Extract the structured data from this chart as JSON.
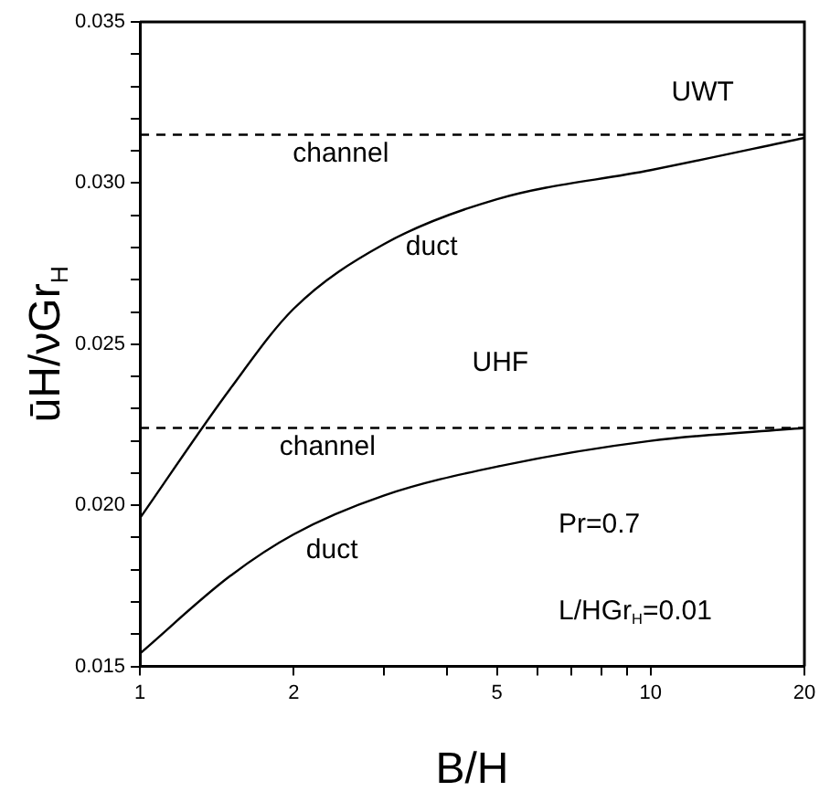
{
  "chart_data": {
    "type": "line",
    "xlabel": "B/H",
    "ylabel": "ūH/νGr$_{H}$",
    "log": "x",
    "xlim": [
      1,
      20
    ],
    "ylim": [
      0.015,
      0.035
    ],
    "xticks": [
      1,
      2,
      {
        "value": 3,
        "label": null
      },
      {
        "value": 4,
        "label": null
      },
      5,
      {
        "value": 6,
        "label": null
      },
      {
        "value": 7,
        "label": null
      },
      {
        "value": 8,
        "label": null
      },
      {
        "value": 9,
        "label": null
      },
      10,
      20
    ],
    "yticks": [
      0.015,
      {
        "value": 0.016,
        "label": null
      },
      {
        "value": 0.017,
        "label": null
      },
      {
        "value": 0.018,
        "label": null
      },
      {
        "value": 0.019,
        "label": null
      },
      "0.020",
      {
        "value": 0.021,
        "label": null
      },
      {
        "value": 0.022,
        "label": null
      },
      {
        "value": 0.023,
        "label": null
      },
      {
        "value": 0.024,
        "label": null
      },
      0.025,
      {
        "value": 0.026,
        "label": null
      },
      {
        "value": 0.027,
        "label": null
      },
      {
        "value": 0.028,
        "label": null
      },
      {
        "value": 0.029,
        "label": null
      },
      {
        "value": 0.03,
        "label": "0.030"
      },
      {
        "value": 0.031,
        "label": null
      },
      {
        "value": 0.032,
        "label": null
      },
      {
        "value": 0.033,
        "label": null
      },
      {
        "value": 0.034,
        "label": null
      },
      0.035
    ],
    "grid": false,
    "legend": false,
    "marker": "none",
    "x": [
      1,
      1.5,
      2,
      3,
      5,
      10,
      20
    ],
    "series": [
      {
        "color": "#000000",
        "line_style": "dashed",
        "values": [
          0.0315,
          0.0315,
          0.0315,
          0.0315,
          0.0315,
          0.0315,
          0.0315
        ]
      },
      {
        "color": "#000000",
        "line_style": "solid",
        "values": [
          0.0196,
          0.0236,
          0.0261,
          0.0281,
          0.0295,
          0.0304,
          0.0314
        ]
      },
      {
        "color": "#000000",
        "line_style": "dashed",
        "values": [
          0.0224,
          0.0224,
          0.0224,
          0.0224,
          0.0224,
          0.0224,
          0.0224
        ]
      },
      {
        "color": "#000000",
        "line_style": "solid",
        "values": [
          0.0154,
          0.0178,
          0.0191,
          0.0203,
          0.0212,
          0.022,
          0.0224
        ]
      }
    ],
    "annotations": [
      "UWT",
      "channel",
      "duct",
      "UHF",
      "channel",
      "duct",
      "Pr=0.7",
      "L/HGr$_{H}$=0.01"
    ]
  }
}
